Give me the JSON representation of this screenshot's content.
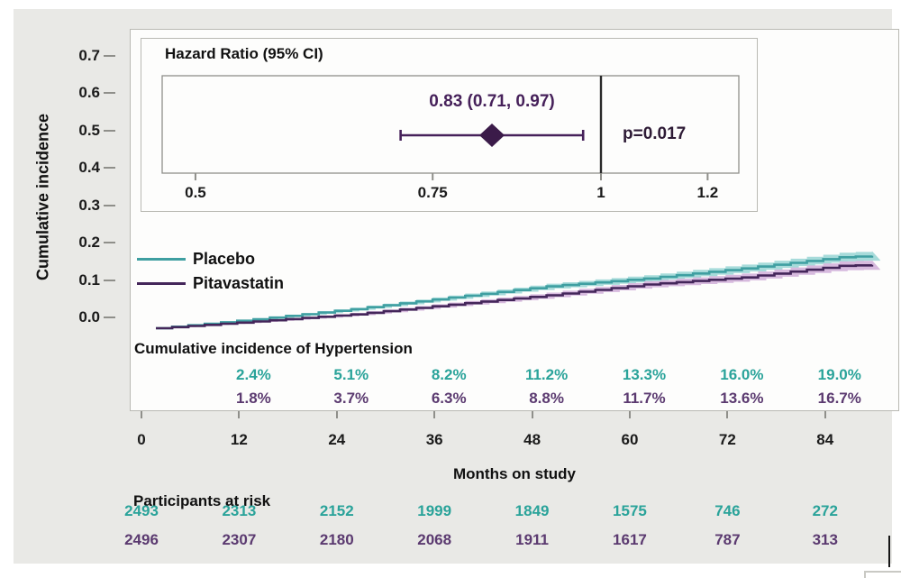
{
  "chart_data": {
    "type": "line",
    "subtype": "cumulative-incidence-step-curves-with-ci-bands",
    "title": "Cumulative incidence of Hypertension",
    "xlabel": "Months on study",
    "ylabel": "Cumulative incidence",
    "x_ticks": [
      0,
      12,
      24,
      36,
      48,
      60,
      72,
      84
    ],
    "y_ticks": [
      "0.7",
      "0.6",
      "0.5",
      "0.4",
      "0.3",
      "0.2",
      "0.1",
      "0.0"
    ],
    "ylim": [
      0,
      0.7
    ],
    "xlim": [
      0,
      90
    ],
    "grid": false,
    "legend_position": "inside-upper-left",
    "series": [
      {
        "name": "Placebo",
        "color": "#3f9fa1",
        "band_color": "#a7dbda",
        "text_color": "#2aa39a",
        "months": [
          0,
          12,
          24,
          36,
          48,
          60,
          72,
          84,
          89
        ],
        "cumulative_incidence": [
          0,
          0.024,
          0.051,
          0.082,
          0.112,
          0.133,
          0.16,
          0.19,
          0.195
        ]
      },
      {
        "name": "Pitavastatin",
        "color": "#44265a",
        "band_color": "#d7bade",
        "text_color": "#5b3a70",
        "months": [
          0,
          12,
          24,
          36,
          48,
          60,
          72,
          84,
          89
        ],
        "cumulative_incidence": [
          0,
          0.018,
          0.037,
          0.063,
          0.088,
          0.117,
          0.136,
          0.167,
          0.17
        ]
      }
    ],
    "incidence_labels": {
      "months": [
        12,
        24,
        36,
        48,
        60,
        72,
        84
      ],
      "placebo": [
        "2.4%",
        "5.1%",
        "8.2%",
        "11.2%",
        "13.3%",
        "16.0%",
        "19.0%"
      ],
      "pitavastatin": [
        "1.8%",
        "3.7%",
        "6.3%",
        "8.8%",
        "11.7%",
        "13.6%",
        "16.7%"
      ]
    },
    "participants_at_risk": {
      "title": "Participants at risk",
      "months": [
        0,
        12,
        24,
        36,
        48,
        60,
        72,
        84
      ],
      "placebo": [
        "2493",
        "2313",
        "2152",
        "1999",
        "1849",
        "1575",
        "746",
        "272"
      ],
      "pitavastatin": [
        "2496",
        "2307",
        "2180",
        "2068",
        "1911",
        "1617",
        "787",
        "313"
      ]
    },
    "inset_forest": {
      "title": "Hazard Ratio (95% CI)",
      "estimate_text": "0.83 (0.71, 0.97)",
      "hazard_ratio": 0.83,
      "ci_lower": 0.71,
      "ci_upper": 0.97,
      "p_text": "p=0.017",
      "reference_line": 1,
      "axis_ticks": [
        0.5,
        0.75,
        1,
        1.2
      ],
      "scale": "log",
      "marker_color": "#3b1b49",
      "line_color": "#46215a"
    }
  },
  "colors": {
    "panel_bg": "#e9e9e6",
    "plot_bg": "#fdfdfc",
    "axis_text": "#1b1b1b"
  }
}
